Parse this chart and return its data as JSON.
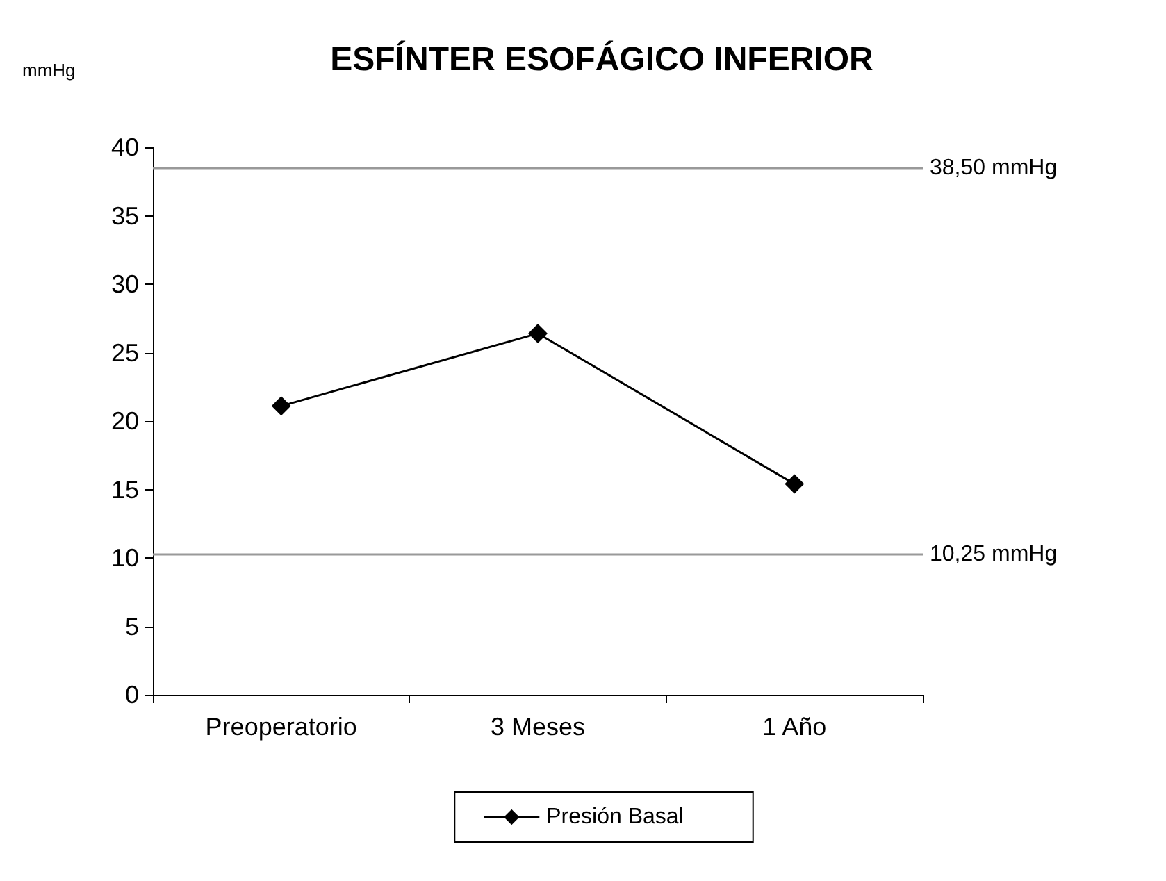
{
  "chart_data": {
    "type": "line",
    "title": "ESFÍNTER ESOFÁGICO INFERIOR",
    "ylabel": "mmHg",
    "categories": [
      "Preoperatorio",
      "3 Meses",
      "1 Año"
    ],
    "series": [
      {
        "name": "Presión Basal",
        "color": "#000000",
        "values": [
          21.1,
          26.4,
          15.4
        ]
      }
    ],
    "ylim": [
      0,
      40
    ],
    "yticks": [
      0,
      5,
      10,
      15,
      20,
      25,
      30,
      35,
      40
    ],
    "ref_lines": [
      {
        "axis": "y",
        "value": 38.5,
        "label": "38,50 mmHg",
        "color": "#999999"
      },
      {
        "axis": "y",
        "value": 10.25,
        "label": "10,25 mmHg",
        "color": "#999999"
      }
    ],
    "marker": "diamond",
    "line_style": "solid",
    "grid": false,
    "legend": "bottom"
  }
}
